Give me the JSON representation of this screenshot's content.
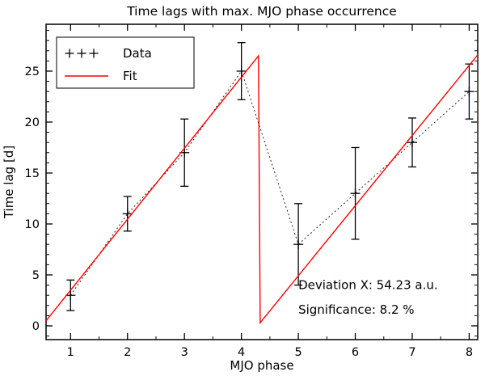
{
  "chart_data": {
    "type": "line",
    "title": "Time lags with max. MJO phase occurrence",
    "xlabel": "MJO phase",
    "ylabel": "Time lag  [d]",
    "xlim": [
      0.57,
      8.15
    ],
    "ylim": [
      -1.35,
      29.6
    ],
    "xticks": [
      1,
      2,
      3,
      4,
      5,
      6,
      7,
      8
    ],
    "yticks": [
      0,
      5,
      10,
      15,
      20,
      25
    ],
    "x_minor_step": 0.5,
    "y_minor_step": 1,
    "grid": false,
    "series": [
      {
        "name": "Data",
        "marker": "plus",
        "line": "dotted",
        "color": "#000000",
        "x": [
          1,
          2,
          3,
          4,
          5,
          6,
          7,
          8
        ],
        "y": [
          3,
          11,
          17,
          25,
          8,
          13,
          18,
          23
        ],
        "yerr": [
          1.5,
          1.7,
          3.3,
          2.8,
          4.0,
          4.5,
          2.4,
          2.7
        ]
      },
      {
        "name": "Fit",
        "marker": "none",
        "line": "solid",
        "color": "#ff0000",
        "points": [
          [
            0.57,
            0.5
          ],
          [
            4.3,
            26.5
          ],
          [
            4.33,
            0.3
          ],
          [
            8.15,
            26.6
          ],
          [
            8.15,
            0.3
          ]
        ]
      }
    ],
    "legend": {
      "position": "top-left",
      "entries": [
        "Data",
        "Fit"
      ]
    },
    "annotations": [
      {
        "text": "Deviation X: 54.23 a.u.",
        "x": 5.0,
        "y": 3.6
      },
      {
        "text": "Significance: 8.2 %",
        "x": 5.0,
        "y": 1.2
      }
    ]
  }
}
